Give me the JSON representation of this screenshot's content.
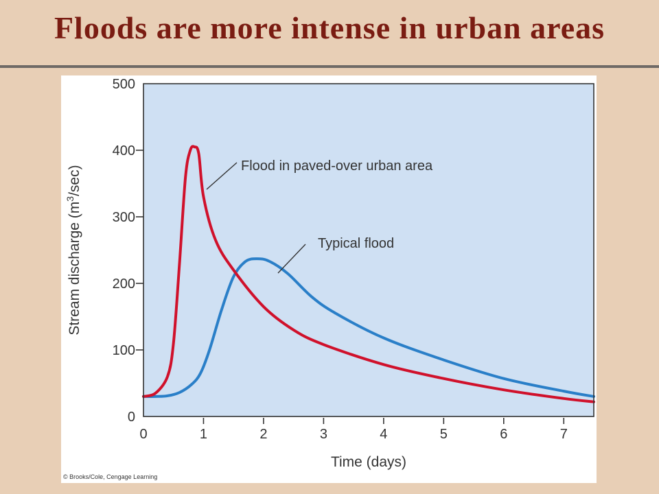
{
  "slide": {
    "title": "Floods are more intense in urban areas"
  },
  "credit": "© Brooks/Cole, Cengage Learning",
  "colors": {
    "background": "#e8cfb6",
    "title": "#7a1c12",
    "plot_area": "#cfe0f3",
    "urban_series": "#d0112b",
    "typical_series": "#2a7fc8"
  },
  "chart_data": {
    "type": "line",
    "title": "",
    "xlabel": "Time (days)",
    "ylabel_main": "Stream discharge (m",
    "ylabel_sup": "3",
    "ylabel_tail": "/sec)",
    "xlim": [
      0,
      7.5
    ],
    "ylim": [
      0,
      500
    ],
    "xticks": [
      "0",
      "1",
      "2",
      "3",
      "4",
      "5",
      "6",
      "7"
    ],
    "yticks": [
      "0",
      "100",
      "200",
      "300",
      "400",
      "500"
    ],
    "grid": false,
    "legend": "none",
    "series": [
      {
        "name": "Flood in paved-over urban area",
        "color": "#d0112b",
        "x": [
          0,
          0.2,
          0.4,
          0.5,
          0.6,
          0.7,
          0.78,
          0.85,
          0.92,
          1.0,
          1.2,
          1.5,
          2.0,
          2.5,
          3.0,
          4.0,
          5.0,
          6.0,
          7.0,
          7.5
        ],
        "y": [
          30,
          35,
          60,
          110,
          230,
          360,
          400,
          405,
          395,
          330,
          265,
          220,
          165,
          130,
          108,
          78,
          57,
          40,
          27,
          22
        ]
      },
      {
        "name": "Typical flood",
        "color": "#2a7fc8",
        "x": [
          0,
          0.2,
          0.4,
          0.6,
          0.8,
          0.95,
          1.1,
          1.3,
          1.5,
          1.7,
          1.9,
          2.1,
          2.4,
          2.8,
          3.2,
          4.0,
          5.0,
          6.0,
          7.0,
          7.5
        ],
        "y": [
          30,
          30,
          31,
          36,
          48,
          65,
          100,
          160,
          210,
          233,
          237,
          233,
          215,
          180,
          155,
          118,
          85,
          57,
          38,
          30
        ]
      }
    ],
    "annotations": [
      {
        "text": "Flood in paved-over urban area",
        "series": 0
      },
      {
        "text": "Typical flood",
        "series": 1
      }
    ]
  }
}
